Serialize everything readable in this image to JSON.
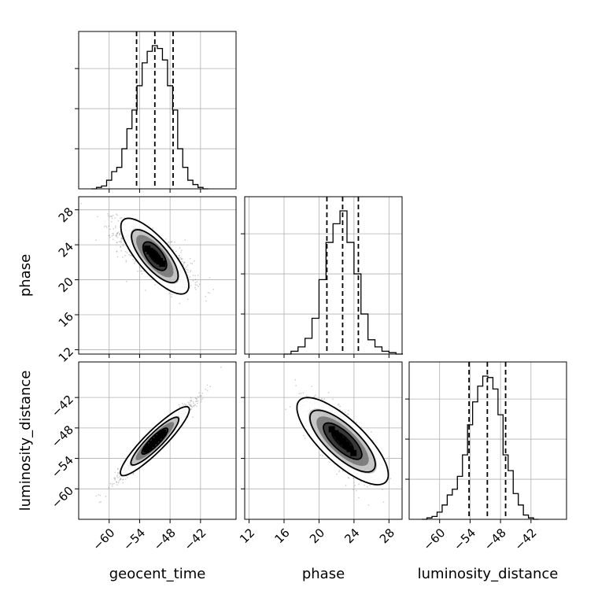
{
  "chart_data": {
    "type": "corner",
    "parameters": [
      {
        "name": "geocent_time",
        "label": "geocent_time",
        "range": [
          -66,
          -35
        ],
        "ticks": [
          -60,
          -54,
          -48,
          -42
        ],
        "tick_labels": [
          "−60",
          "−54",
          "−48",
          "−42"
        ],
        "mean": -51,
        "std": 3.6,
        "quantiles": [
          -54.6,
          -51.0,
          -47.4
        ],
        "histogram": {
          "bin_edges": [
            -63.5,
            -62.5,
            -61.5,
            -60.5,
            -59.5,
            -58.5,
            -57.5,
            -56.5,
            -55.5,
            -54.5,
            -53.5,
            -52.5,
            -51.5,
            -50.5,
            -49.5,
            -48.5,
            -47.5,
            -46.5,
            -45.5,
            -44.5,
            -43.5,
            -42.5,
            -41.5,
            -40.5
          ],
          "counts": [
            0.0,
            0.01,
            0.02,
            0.06,
            0.12,
            0.15,
            0.28,
            0.42,
            0.55,
            0.72,
            0.88,
            0.96,
            1.0,
            0.98,
            0.9,
            0.72,
            0.55,
            0.28,
            0.15,
            0.06,
            0.03,
            0.01,
            0.0
          ]
        }
      },
      {
        "name": "phase",
        "label": "phase",
        "range": [
          11.5,
          29.5
        ],
        "ticks": [
          12,
          16,
          20,
          24,
          28
        ],
        "tick_labels": [
          "12",
          "16",
          "20",
          "24",
          "28"
        ],
        "mean": 22.7,
        "std": 1.8,
        "quantiles": [
          20.9,
          22.7,
          24.5
        ],
        "histogram": {
          "bin_edges": [
            16.0,
            16.8,
            17.6,
            18.4,
            19.2,
            20.0,
            20.8,
            21.6,
            22.4,
            23.2,
            24.0,
            24.8,
            25.6,
            26.4,
            27.2,
            28.0,
            28.8,
            29.6
          ],
          "counts": [
            0.0,
            0.02,
            0.05,
            0.11,
            0.25,
            0.52,
            0.78,
            0.91,
            1.0,
            0.78,
            0.56,
            0.28,
            0.1,
            0.05,
            0.02,
            0.01,
            0.0
          ]
        }
      },
      {
        "name": "luminosity_distance",
        "label": "luminosity_distance",
        "range": [
          -66,
          -35
        ],
        "ticks": [
          -60,
          -54,
          -48,
          -42
        ],
        "tick_labels": [
          "−60",
          "−54",
          "−48",
          "−42"
        ],
        "mean": -50.6,
        "std": 3.6,
        "quantiles": [
          -54.2,
          -50.6,
          -47.0
        ],
        "histogram": {
          "bin_edges": [
            -63.5,
            -62.5,
            -61.5,
            -60.5,
            -59.5,
            -58.5,
            -57.5,
            -56.5,
            -55.5,
            -54.5,
            -53.5,
            -52.5,
            -51.5,
            -50.5,
            -49.5,
            -48.5,
            -47.5,
            -46.5,
            -45.5,
            -44.5,
            -43.5,
            -42.5,
            -41.5,
            -40.5
          ],
          "counts": [
            0.0,
            0.01,
            0.02,
            0.05,
            0.1,
            0.17,
            0.21,
            0.3,
            0.45,
            0.66,
            0.82,
            0.93,
            1.0,
            0.99,
            0.91,
            0.73,
            0.45,
            0.34,
            0.18,
            0.1,
            0.03,
            0.01,
            0.0
          ]
        }
      }
    ],
    "pairs": [
      {
        "x": "geocent_time",
        "y": "phase",
        "correlation": -0.75,
        "contours": [
          {
            "level": 0.39,
            "axes": [
              2.6,
              1.15
            ],
            "angle_deg": -30
          },
          {
            "level": 0.86,
            "axes": [
              5.2,
              1.8
            ],
            "angle_deg": -30
          },
          {
            "level": 0.99,
            "axes": [
              7.6,
              2.4
            ],
            "angle_deg": -30
          }
        ]
      },
      {
        "x": "geocent_time",
        "y": "luminosity_distance",
        "correlation": 0.97,
        "contours": [
          {
            "level": 0.39,
            "axes": [
              3.5,
              0.9
            ],
            "angle_deg": 45
          },
          {
            "level": 0.86,
            "axes": [
              6.5,
              1.45
            ],
            "angle_deg": 45
          },
          {
            "level": 0.99,
            "axes": [
              9.4,
              2.0
            ],
            "angle_deg": 45
          }
        ]
      },
      {
        "x": "phase",
        "y": "luminosity_distance",
        "correlation": -0.75,
        "contours": [
          {
            "level": 0.39,
            "axes": [
              4.0,
              1.3
            ],
            "angle_deg": -62
          },
          {
            "level": 0.86,
            "axes": [
              6.8,
              2.2
            ],
            "angle_deg": -62
          },
          {
            "level": 0.99,
            "axes": [
              9.6,
              3.0
            ],
            "angle_deg": -62
          }
        ]
      }
    ],
    "grid": true,
    "quantile_lines": "dashed",
    "colors": {
      "line": "#000000",
      "grid": "#b0b0b0",
      "density": "#000000",
      "points": "#808080"
    }
  }
}
